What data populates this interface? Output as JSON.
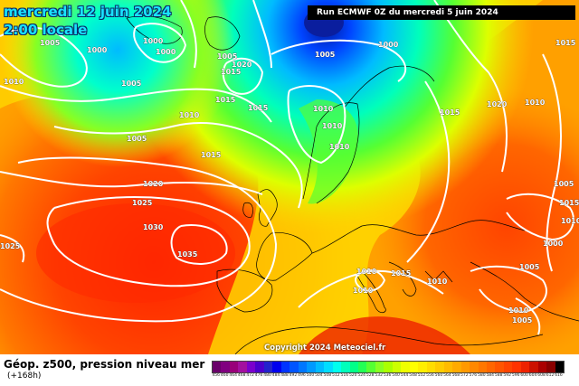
{
  "header": {
    "date": "mercredi 12 juin 2024",
    "local_time": "2:00 locale",
    "run_info": "Run ECMWF 0Z du mercredi 5 juin 2024"
  },
  "footer": {
    "copyright": "Copyright 2024 Meteociel.fr",
    "product_title": "Géop. z500, pression niveau mer",
    "lead_time": "(+168h)"
  },
  "isobar_labels": [
    "1000",
    "1005",
    "1000",
    "1005",
    "1000",
    "1000",
    "1005",
    "1010",
    "1005",
    "1015",
    "1010",
    "1020",
    "1015",
    "1010",
    "1015",
    "1010",
    "1005",
    "1010",
    "1015",
    "1015",
    "1020",
    "1010",
    "1015",
    "1020",
    "1025",
    "1030",
    "1025",
    "1035",
    "1015",
    "1010",
    "1015",
    "1010",
    "1010",
    "1000",
    "1005",
    "1005",
    "1010",
    "1010",
    "1005"
  ],
  "colors": {
    "low_center": "#0a1e9e",
    "high_center": "#ff2a00",
    "coastline": "#000000",
    "isobar": "#ffffff",
    "date_text": "#19e3ff"
  },
  "scale": {
    "labels": [
      "456",
      "460",
      "464",
      "468",
      "472",
      "476",
      "480",
      "484",
      "488",
      "492",
      "496",
      "500",
      "504",
      "508",
      "512",
      "516",
      "520",
      "524",
      "528",
      "532",
      "536",
      "540",
      "544",
      "548",
      "552",
      "556",
      "560",
      "564",
      "568",
      "572",
      "576",
      "580",
      "584",
      "588",
      "592",
      "596",
      "600",
      "604",
      "608",
      "612",
      "616"
    ],
    "colors": [
      "#6a006a",
      "#800080",
      "#99007a",
      "#a3109f",
      "#7a00cc",
      "#4b00cc",
      "#2222cc",
      "#0000ee",
      "#0033ff",
      "#0055ff",
      "#0077ff",
      "#0099ff",
      "#00bbff",
      "#00ddff",
      "#00ffee",
      "#00ffbb",
      "#00ff88",
      "#22ff55",
      "#55ff33",
      "#88ff22",
      "#aaff00",
      "#ccff00",
      "#eeff00",
      "#ffff00",
      "#ffee00",
      "#ffdd00",
      "#ffcc00",
      "#ffbb00",
      "#ffaa00",
      "#ff9900",
      "#ff8800",
      "#ff7700",
      "#ff6600",
      "#ff5500",
      "#ff4400",
      "#ff3300",
      "#ee2200",
      "#cc1100",
      "#aa0000",
      "#880000",
      "#000000"
    ]
  }
}
